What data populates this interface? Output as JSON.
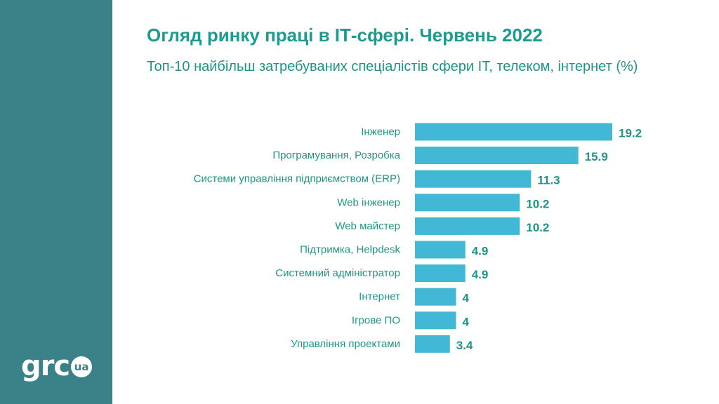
{
  "header": {
    "title": "Огляд ринку праці в ІТ-сфері. Червень 2022",
    "subtitle": "Топ-10 найбільш затребуваних спеціалістів сфери ІТ, телеком, інтернет (%)"
  },
  "logo": {
    "text": "grc",
    "badge": "ua"
  },
  "colors": {
    "sidebar": "#3a8287",
    "bar": "#43b8d6",
    "text": "#1f9487"
  },
  "chart_data": {
    "type": "bar",
    "orientation": "horizontal",
    "title": "Топ-10 найбільш затребуваних спеціалістів сфери ІТ, телеком, інтернет (%)",
    "categories": [
      "Інженер",
      "Програмування, Розробка",
      "Системи управління підприємством (ERP)",
      "Web інженер",
      "Web майстер",
      "Підтримка, Helpdesk",
      "Системний адміністратор",
      "Інтернет",
      "Ігрове ПО",
      "Управління проектами"
    ],
    "values": [
      19.2,
      15.9,
      11.3,
      10.2,
      10.2,
      4.9,
      4.9,
      4,
      4,
      3.4
    ],
    "value_labels": [
      "19.2",
      "15.9",
      "11.3",
      "10.2",
      "10.2",
      "4.9",
      "4.9",
      "4",
      "4",
      "3.4"
    ],
    "xlim": [
      0,
      19.2
    ],
    "grid": false,
    "legend": "none"
  }
}
